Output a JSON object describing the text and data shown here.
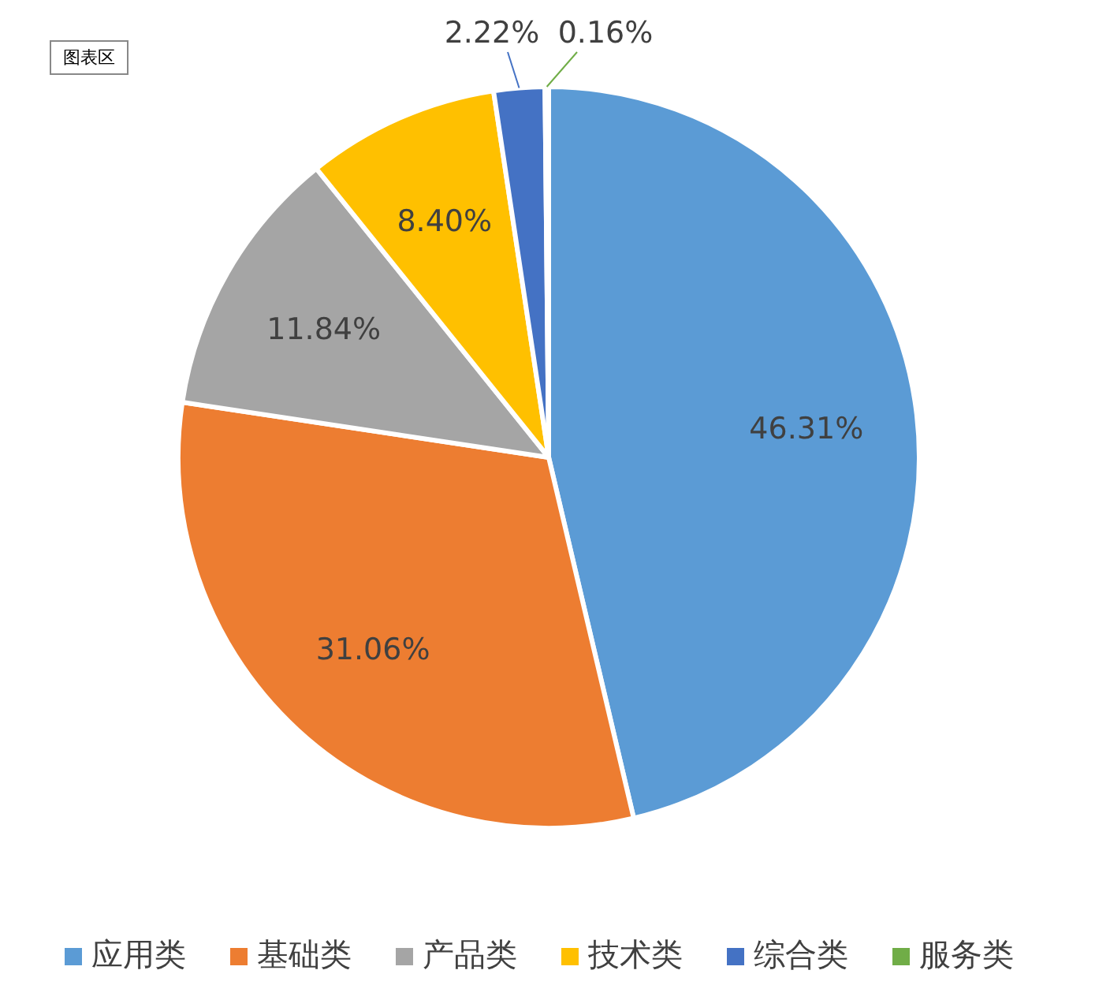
{
  "chart_data": {
    "type": "pie",
    "categories": [
      "应用类",
      "基础类",
      "产品类",
      "技术类",
      "综合类",
      "服务类"
    ],
    "values": [
      46.31,
      31.06,
      11.84,
      8.4,
      2.22,
      0.16
    ],
    "colors": [
      "#5b9bd5",
      "#ed7d31",
      "#a5a5a5",
      "#ffc000",
      "#4472c4",
      "#70ad47"
    ],
    "value_labels": [
      "46.31%",
      "31.06%",
      "11.84%",
      "8.40%",
      "2.22%",
      "0.16%"
    ],
    "legend": "bottom",
    "annotations": [
      "图表区"
    ]
  }
}
